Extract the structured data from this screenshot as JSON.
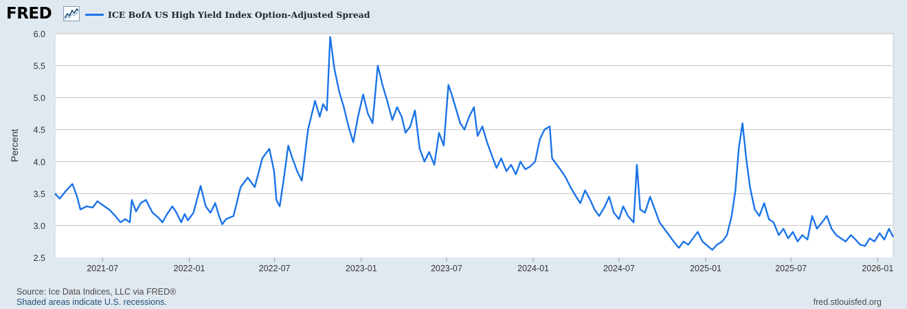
{
  "brand": {
    "logo_text": "FRED"
  },
  "legend": {
    "series_label": "ICE BofA US High Yield Index Option-Adjusted Spread",
    "color": "#1a73e8"
  },
  "footer": {
    "source": "Source: Ice Data Indices, LLC via FRED®",
    "recessions": "Shaded areas indicate U.S. recessions.",
    "url": "fred.stlouisfed.org"
  },
  "chart_data": {
    "type": "line",
    "title": "",
    "xlabel": "",
    "ylabel": "Percent",
    "ylim": [
      2.5,
      6.0
    ],
    "xlim": [
      "2021-03-22",
      "2026-02-03"
    ],
    "grid": true,
    "legend_position": "top-left",
    "yticks": [
      "2.5",
      "3.0",
      "3.5",
      "4.0",
      "4.5",
      "5.0",
      "5.5",
      "6.0"
    ],
    "xticks": [
      "2021-07",
      "2022-01",
      "2022-07",
      "2023-01",
      "2023-07",
      "2024-01",
      "2024-07",
      "2025-01",
      "2025-07",
      "2026-01"
    ],
    "series": [
      {
        "name": "ICE BofA US High Yield Index Option-Adjusted Spread",
        "color": "#1a73e8",
        "points": [
          [
            "2021-03-22",
            3.5
          ],
          [
            "2021-04-01",
            3.42
          ],
          [
            "2021-04-15",
            3.55
          ],
          [
            "2021-04-28",
            3.65
          ],
          [
            "2021-05-08",
            3.45
          ],
          [
            "2021-05-15",
            3.25
          ],
          [
            "2021-05-28",
            3.3
          ],
          [
            "2021-06-10",
            3.28
          ],
          [
            "2021-06-20",
            3.38
          ],
          [
            "2021-07-01",
            3.32
          ],
          [
            "2021-07-15",
            3.25
          ],
          [
            "2021-07-28",
            3.15
          ],
          [
            "2021-08-08",
            3.05
          ],
          [
            "2021-08-18",
            3.1
          ],
          [
            "2021-08-28",
            3.05
          ],
          [
            "2021-09-01",
            3.4
          ],
          [
            "2021-09-10",
            3.22
          ],
          [
            "2021-09-20",
            3.35
          ],
          [
            "2021-10-01",
            3.4
          ],
          [
            "2021-10-15",
            3.2
          ],
          [
            "2021-10-28",
            3.12
          ],
          [
            "2021-11-05",
            3.05
          ],
          [
            "2021-11-15",
            3.18
          ],
          [
            "2021-11-26",
            3.3
          ],
          [
            "2021-12-05",
            3.2
          ],
          [
            "2021-12-15",
            3.05
          ],
          [
            "2021-12-22",
            3.18
          ],
          [
            "2021-12-29",
            3.08
          ],
          [
            "2022-01-10",
            3.2
          ],
          [
            "2022-01-25",
            3.62
          ],
          [
            "2022-02-05",
            3.3
          ],
          [
            "2022-02-15",
            3.2
          ],
          [
            "2022-02-25",
            3.35
          ],
          [
            "2022-03-05",
            3.15
          ],
          [
            "2022-03-12",
            3.02
          ],
          [
            "2022-03-20",
            3.1
          ],
          [
            "2022-04-05",
            3.15
          ],
          [
            "2022-04-20",
            3.6
          ],
          [
            "2022-05-05",
            3.75
          ],
          [
            "2022-05-20",
            3.6
          ],
          [
            "2022-06-05",
            4.05
          ],
          [
            "2022-06-20",
            4.2
          ],
          [
            "2022-06-30",
            3.85
          ],
          [
            "2022-07-05",
            3.4
          ],
          [
            "2022-07-12",
            3.3
          ],
          [
            "2022-07-20",
            3.7
          ],
          [
            "2022-07-30",
            4.25
          ],
          [
            "2022-08-08",
            4.05
          ],
          [
            "2022-08-18",
            3.85
          ],
          [
            "2022-08-28",
            3.7
          ],
          [
            "2022-09-10",
            4.5
          ],
          [
            "2022-09-25",
            4.95
          ],
          [
            "2022-10-05",
            4.7
          ],
          [
            "2022-10-12",
            4.9
          ],
          [
            "2022-10-20",
            4.8
          ],
          [
            "2022-10-27",
            5.95
          ],
          [
            "2022-11-05",
            5.45
          ],
          [
            "2022-11-15",
            5.1
          ],
          [
            "2022-11-25",
            4.85
          ],
          [
            "2022-12-05",
            4.55
          ],
          [
            "2022-12-15",
            4.3
          ],
          [
            "2022-12-25",
            4.7
          ],
          [
            "2023-01-05",
            5.05
          ],
          [
            "2023-01-15",
            4.75
          ],
          [
            "2023-01-25",
            4.6
          ],
          [
            "2023-02-05",
            5.5
          ],
          [
            "2023-02-15",
            5.2
          ],
          [
            "2023-02-25",
            4.95
          ],
          [
            "2023-03-08",
            4.65
          ],
          [
            "2023-03-18",
            4.85
          ],
          [
            "2023-03-28",
            4.7
          ],
          [
            "2023-04-05",
            4.45
          ],
          [
            "2023-04-15",
            4.55
          ],
          [
            "2023-04-25",
            4.8
          ],
          [
            "2023-05-05",
            4.2
          ],
          [
            "2023-05-15",
            4.0
          ],
          [
            "2023-05-25",
            4.15
          ],
          [
            "2023-06-05",
            3.95
          ],
          [
            "2023-06-15",
            4.45
          ],
          [
            "2023-06-25",
            4.25
          ],
          [
            "2023-07-05",
            5.2
          ],
          [
            "2023-07-12",
            5.05
          ],
          [
            "2023-07-20",
            4.85
          ],
          [
            "2023-07-30",
            4.6
          ],
          [
            "2023-08-08",
            4.5
          ],
          [
            "2023-08-18",
            4.7
          ],
          [
            "2023-08-28",
            4.85
          ],
          [
            "2023-09-05",
            4.4
          ],
          [
            "2023-09-15",
            4.55
          ],
          [
            "2023-09-25",
            4.3
          ],
          [
            "2023-10-05",
            4.1
          ],
          [
            "2023-10-15",
            3.9
          ],
          [
            "2023-10-25",
            4.05
          ],
          [
            "2023-11-05",
            3.85
          ],
          [
            "2023-11-15",
            3.95
          ],
          [
            "2023-11-25",
            3.8
          ],
          [
            "2023-12-05",
            4.0
          ],
          [
            "2023-12-15",
            3.88
          ],
          [
            "2023-12-25",
            3.92
          ],
          [
            "2024-01-05",
            4.0
          ],
          [
            "2024-01-15",
            4.35
          ],
          [
            "2024-01-25",
            4.5
          ],
          [
            "2024-02-05",
            4.55
          ],
          [
            "2024-02-10",
            4.05
          ],
          [
            "2024-02-20",
            3.95
          ],
          [
            "2024-03-01",
            3.85
          ],
          [
            "2024-03-10",
            3.75
          ],
          [
            "2024-03-20",
            3.6
          ],
          [
            "2024-04-01",
            3.45
          ],
          [
            "2024-04-10",
            3.35
          ],
          [
            "2024-04-20",
            3.55
          ],
          [
            "2024-05-01",
            3.4
          ],
          [
            "2024-05-10",
            3.25
          ],
          [
            "2024-05-20",
            3.15
          ],
          [
            "2024-06-01",
            3.3
          ],
          [
            "2024-06-10",
            3.45
          ],
          [
            "2024-06-20",
            3.2
          ],
          [
            "2024-07-01",
            3.1
          ],
          [
            "2024-07-10",
            3.3
          ],
          [
            "2024-07-20",
            3.15
          ],
          [
            "2024-08-01",
            3.05
          ],
          [
            "2024-08-08",
            3.95
          ],
          [
            "2024-08-15",
            3.25
          ],
          [
            "2024-08-25",
            3.2
          ],
          [
            "2024-09-05",
            3.45
          ],
          [
            "2024-09-15",
            3.25
          ],
          [
            "2024-09-25",
            3.05
          ],
          [
            "2024-10-05",
            2.95
          ],
          [
            "2024-10-15",
            2.85
          ],
          [
            "2024-10-25",
            2.75
          ],
          [
            "2024-11-05",
            2.65
          ],
          [
            "2024-11-15",
            2.75
          ],
          [
            "2024-11-25",
            2.7
          ],
          [
            "2024-12-05",
            2.8
          ],
          [
            "2024-12-15",
            2.9
          ],
          [
            "2024-12-25",
            2.75
          ],
          [
            "2025-01-05",
            2.68
          ],
          [
            "2025-01-15",
            2.62
          ],
          [
            "2025-01-25",
            2.7
          ],
          [
            "2025-02-05",
            2.75
          ],
          [
            "2025-02-15",
            2.85
          ],
          [
            "2025-02-25",
            3.15
          ],
          [
            "2025-03-05",
            3.55
          ],
          [
            "2025-03-12",
            4.2
          ],
          [
            "2025-03-20",
            4.6
          ],
          [
            "2025-03-28",
            4.05
          ],
          [
            "2025-04-05",
            3.6
          ],
          [
            "2025-04-15",
            3.25
          ],
          [
            "2025-04-25",
            3.15
          ],
          [
            "2025-05-05",
            3.35
          ],
          [
            "2025-05-15",
            3.1
          ],
          [
            "2025-05-25",
            3.05
          ],
          [
            "2025-06-05",
            2.85
          ],
          [
            "2025-06-15",
            2.95
          ],
          [
            "2025-06-25",
            2.8
          ],
          [
            "2025-07-05",
            2.9
          ],
          [
            "2025-07-15",
            2.75
          ],
          [
            "2025-07-25",
            2.85
          ],
          [
            "2025-08-05",
            2.78
          ],
          [
            "2025-08-15",
            3.15
          ],
          [
            "2025-08-25",
            2.95
          ],
          [
            "2025-09-05",
            3.05
          ],
          [
            "2025-09-15",
            3.15
          ],
          [
            "2025-09-25",
            2.95
          ],
          [
            "2025-10-05",
            2.85
          ],
          [
            "2025-10-15",
            2.8
          ],
          [
            "2025-10-25",
            2.75
          ],
          [
            "2025-11-05",
            2.85
          ],
          [
            "2025-11-15",
            2.78
          ],
          [
            "2025-11-25",
            2.7
          ],
          [
            "2025-12-05",
            2.68
          ],
          [
            "2025-12-15",
            2.8
          ],
          [
            "2025-12-25",
            2.75
          ],
          [
            "2026-01-05",
            2.88
          ],
          [
            "2026-01-15",
            2.78
          ],
          [
            "2026-01-25",
            2.95
          ],
          [
            "2026-02-03",
            2.82
          ]
        ]
      }
    ]
  }
}
